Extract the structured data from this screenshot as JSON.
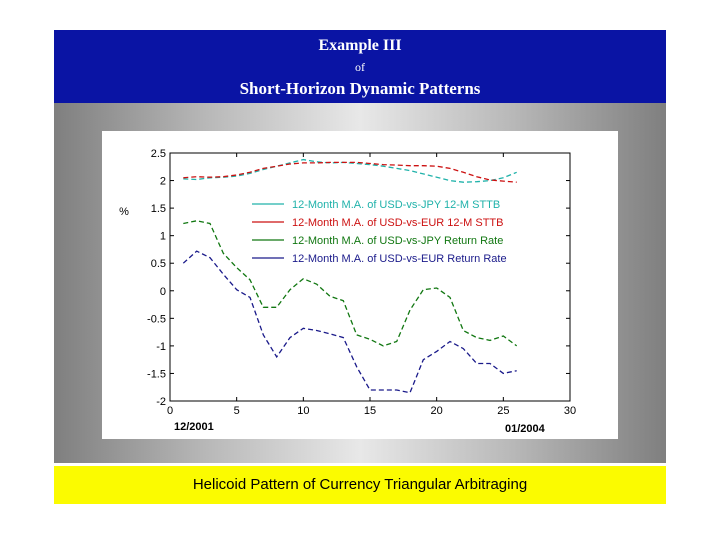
{
  "header": {
    "title": "Example III",
    "of": "of",
    "subtitle": "Short-Horizon Dynamic Patterns"
  },
  "caption": "Helicoid Pattern of Currency Triangular Arbitraging",
  "chart_data": {
    "type": "line",
    "ylabel": "%",
    "xlim": [
      0,
      30
    ],
    "ylim": [
      -2,
      2.5
    ],
    "x_ticks": [
      0,
      5,
      10,
      15,
      20,
      25,
      30
    ],
    "y_ticks": [
      2.5,
      2,
      1.5,
      1,
      0.5,
      0,
      -0.5,
      -1,
      -1.5,
      -2
    ],
    "y_tick_labels": [
      "2.5",
      "2",
      "1.5",
      "1",
      "0.5",
      "0",
      "-0.5",
      "-1",
      "-1.5",
      "-2"
    ],
    "x_start_label": "12/2001",
    "x_end_label": "01/2004",
    "grid": false,
    "legend_position": "top-center",
    "series": [
      {
        "name": "12-Month M.A. of USD-vs-JPY 12-M STTB",
        "color": "#20b2aa",
        "x": [
          1,
          2,
          3,
          4,
          5,
          6,
          7,
          8,
          9,
          10,
          11,
          12,
          13,
          14,
          15,
          16,
          17,
          18,
          19,
          20,
          21,
          22,
          23,
          24,
          25,
          26
        ],
        "y": [
          2.03,
          2.02,
          2.05,
          2.06,
          2.08,
          2.13,
          2.2,
          2.26,
          2.32,
          2.38,
          2.34,
          2.32,
          2.33,
          2.31,
          2.29,
          2.26,
          2.22,
          2.18,
          2.12,
          2.06,
          2.0,
          1.97,
          1.98,
          2.0,
          2.05,
          2.15
        ]
      },
      {
        "name": "12-Month M.A. of USD-vs-EUR 12-M STTB",
        "color": "#cc1111",
        "x": [
          1,
          2,
          3,
          4,
          5,
          6,
          7,
          8,
          9,
          10,
          11,
          12,
          13,
          14,
          15,
          16,
          17,
          18,
          19,
          20,
          21,
          22,
          23,
          24,
          25,
          26
        ],
        "y": [
          2.05,
          2.07,
          2.06,
          2.07,
          2.1,
          2.15,
          2.22,
          2.26,
          2.3,
          2.32,
          2.32,
          2.33,
          2.33,
          2.33,
          2.31,
          2.29,
          2.28,
          2.27,
          2.27,
          2.26,
          2.22,
          2.15,
          2.07,
          2.01,
          1.99,
          1.97
        ]
      },
      {
        "name": "12-Month M.A. of USD-vs-JPY Return Rate",
        "color": "#117711",
        "x": [
          1,
          2,
          3,
          4,
          5,
          6,
          7,
          8,
          9,
          10,
          11,
          12,
          13,
          14,
          15,
          16,
          17,
          18,
          19,
          20,
          21,
          22,
          23,
          24,
          25,
          26
        ],
        "y": [
          1.22,
          1.27,
          1.22,
          0.68,
          0.42,
          0.2,
          -0.3,
          -0.3,
          0.02,
          0.22,
          0.12,
          -0.1,
          -0.18,
          -0.8,
          -0.88,
          -1.0,
          -0.92,
          -0.35,
          0.02,
          0.05,
          -0.12,
          -0.72,
          -0.85,
          -0.9,
          -0.82,
          -1.0
        ]
      },
      {
        "name": "12-Month M.A. of USD-vs-EUR Return Rate",
        "color": "#1a1a8a",
        "x": [
          1,
          2,
          3,
          4,
          5,
          6,
          7,
          8,
          9,
          10,
          11,
          12,
          13,
          14,
          15,
          16,
          17,
          18,
          19,
          20,
          21,
          22,
          23,
          24,
          25,
          26
        ],
        "y": [
          0.5,
          0.72,
          0.6,
          0.3,
          0.02,
          -0.12,
          -0.8,
          -1.2,
          -0.85,
          -0.68,
          -0.72,
          -0.78,
          -0.85,
          -1.38,
          -1.8,
          -1.8,
          -1.8,
          -1.85,
          -1.25,
          -1.1,
          -0.92,
          -1.05,
          -1.32,
          -1.32,
          -1.5,
          -1.45
        ]
      }
    ]
  }
}
